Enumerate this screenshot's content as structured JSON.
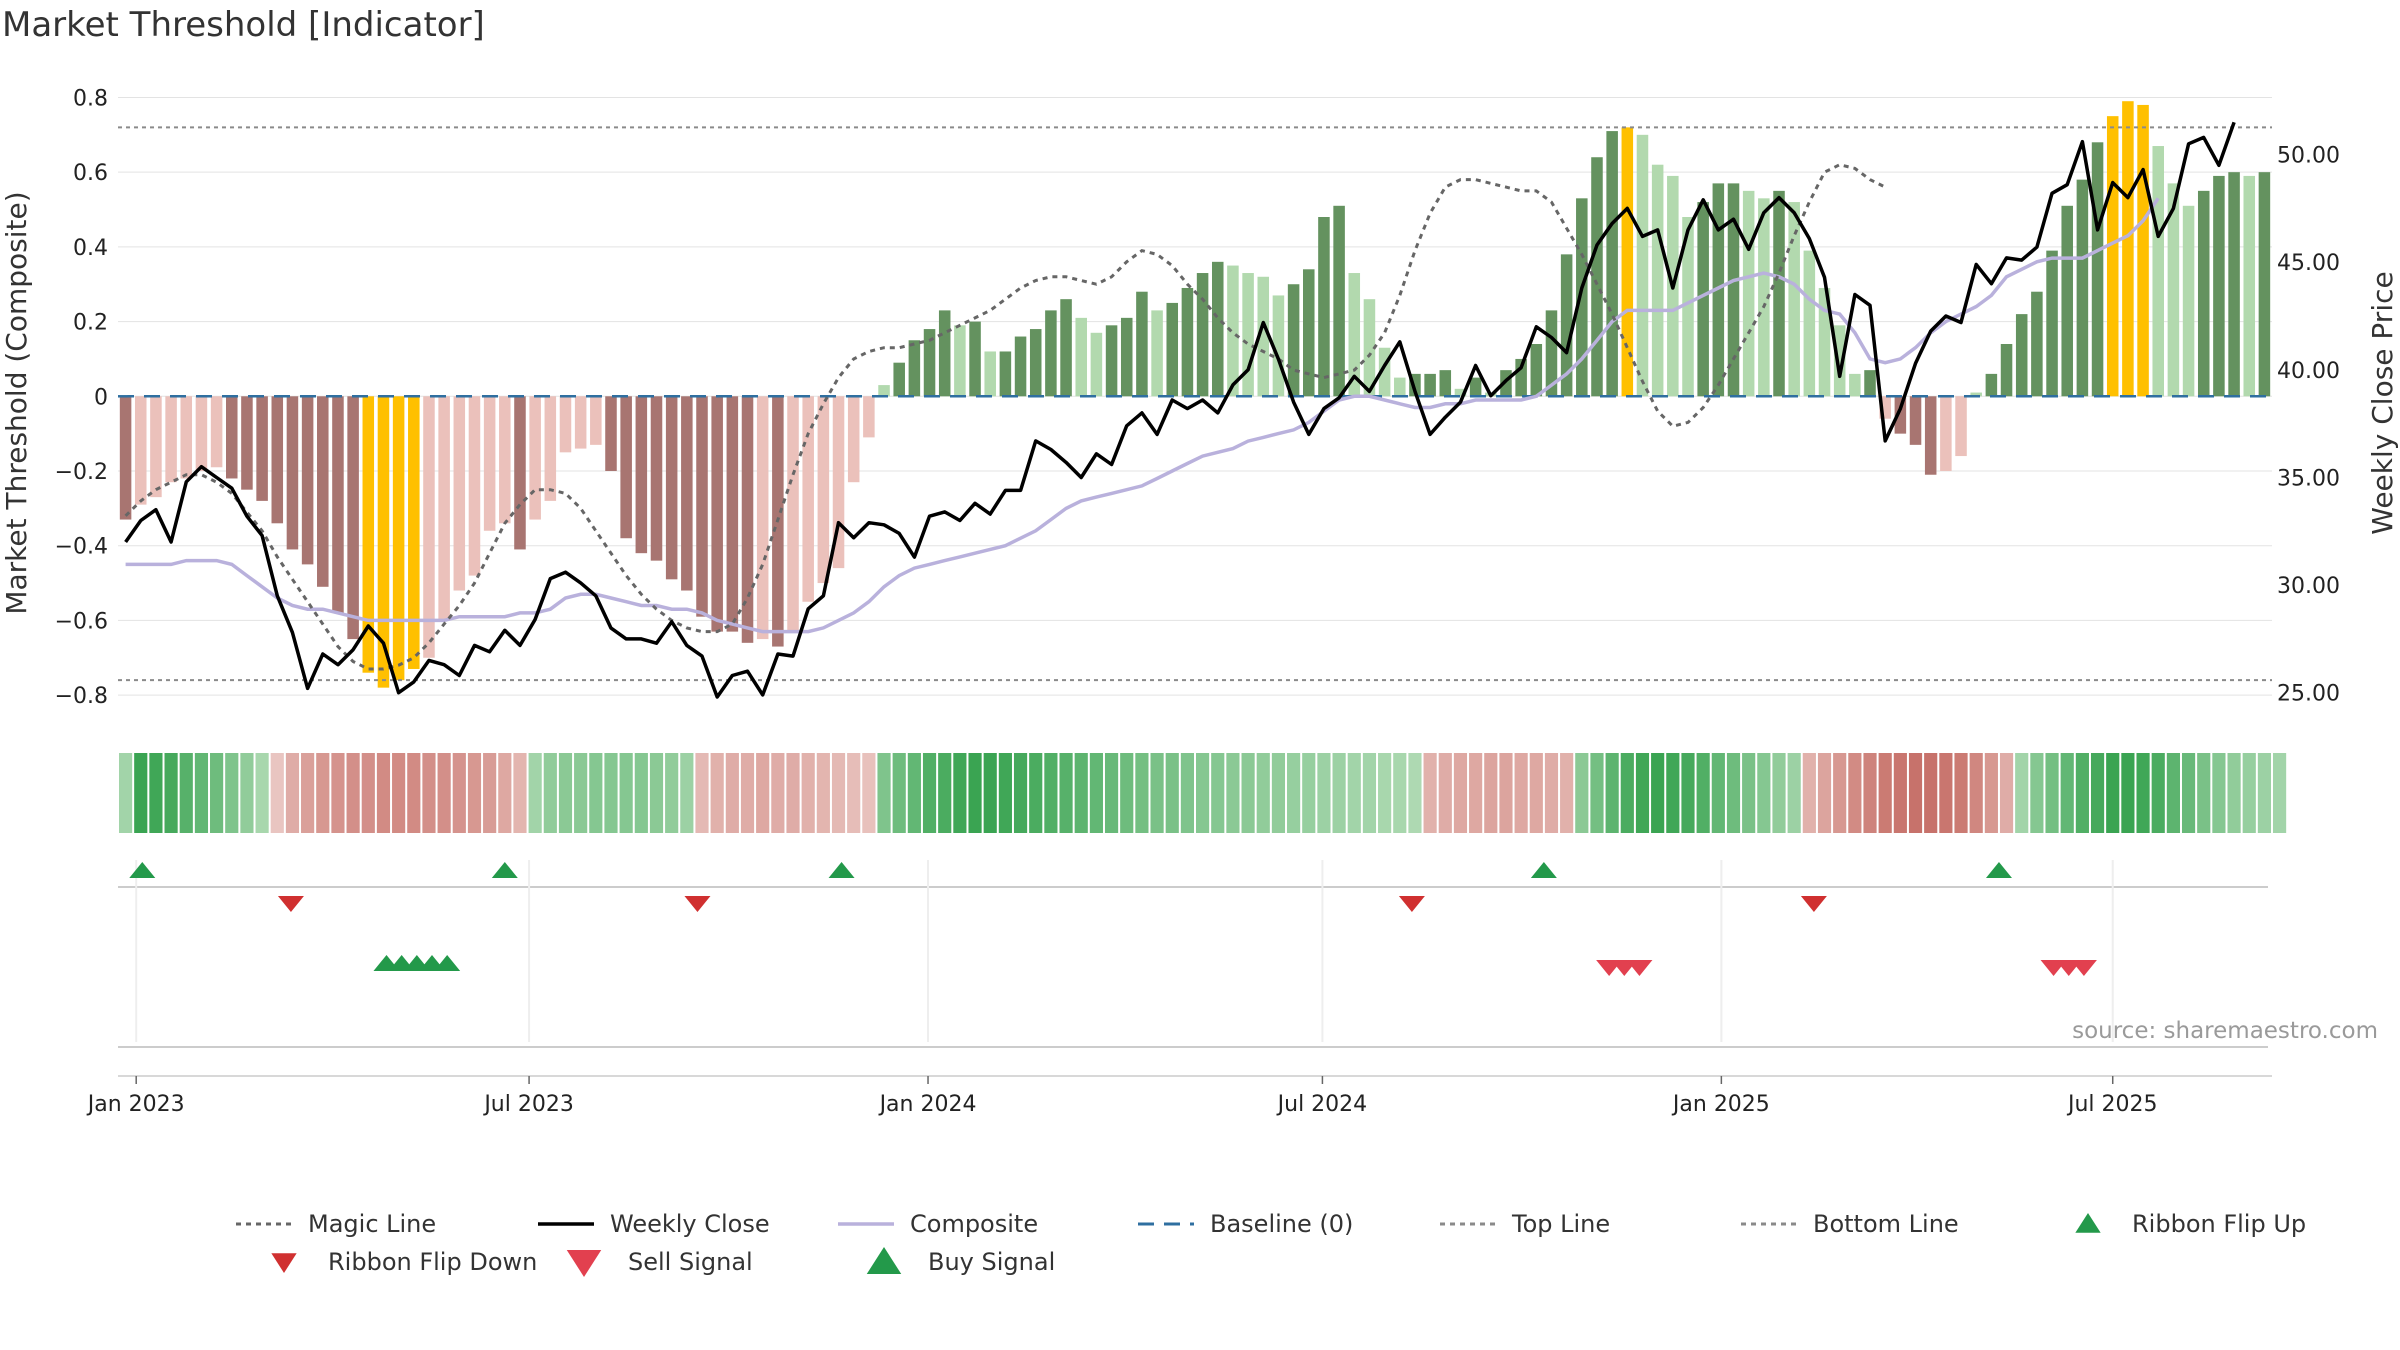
{
  "chart_data": {
    "type": "bar",
    "title": "Market Threshold [Indicator]",
    "ylabel": "Market Threshold (Composite)",
    "y2label": "Weekly Close Price",
    "ylim": [
      -0.88,
      0.82
    ],
    "y2lim": [
      23.5,
      53.0
    ],
    "y_ticks": [
      0.8,
      0.6,
      0.4,
      0.2,
      0,
      -0.2,
      -0.4,
      -0.6,
      -0.8
    ],
    "y_tick_labels": [
      "0.8",
      "0.6",
      "0.4",
      "0.2",
      "0",
      "−0.2",
      "−0.4",
      "−0.6",
      "−0.8"
    ],
    "y2_ticks": [
      50,
      45,
      40,
      35,
      30,
      25
    ],
    "y2_tick_labels": [
      "50.00",
      "45.00",
      "40.00",
      "35.00",
      "30.00",
      "25.00"
    ],
    "x_ticks": [
      {
        "label": "Jan 2023",
        "week": 0.7
      },
      {
        "label": "Jul 2023",
        "week": 26.6
      },
      {
        "label": "Jan 2024",
        "week": 52.9
      },
      {
        "label": "Jul 2024",
        "week": 78.9
      },
      {
        "label": "Jan 2025",
        "week": 105.2
      },
      {
        "label": "Jul 2025",
        "week": 131.0
      }
    ],
    "top_line": 0.72,
    "bottom_line": -0.76,
    "composite": [
      -0.45,
      -0.45,
      -0.45,
      -0.45,
      -0.44,
      -0.44,
      -0.44,
      -0.45,
      -0.48,
      -0.51,
      -0.54,
      -0.56,
      -0.57,
      -0.57,
      -0.58,
      -0.59,
      -0.6,
      -0.6,
      -0.6,
      -0.6,
      -0.6,
      -0.6,
      -0.59,
      -0.59,
      -0.59,
      -0.59,
      -0.58,
      -0.58,
      -0.57,
      -0.54,
      -0.53,
      -0.53,
      -0.54,
      -0.55,
      -0.56,
      -0.56,
      -0.57,
      -0.57,
      -0.58,
      -0.6,
      -0.61,
      -0.62,
      -0.63,
      -0.63,
      -0.63,
      -0.63,
      -0.62,
      -0.6,
      -0.58,
      -0.55,
      -0.51,
      -0.48,
      -0.46,
      -0.45,
      -0.44,
      -0.43,
      -0.42,
      -0.41,
      -0.4,
      -0.38,
      -0.36,
      -0.33,
      -0.3,
      -0.28,
      -0.27,
      -0.26,
      -0.25,
      -0.24,
      -0.22,
      -0.2,
      -0.18,
      -0.16,
      -0.15,
      -0.14,
      -0.12,
      -0.11,
      -0.1,
      -0.09,
      -0.07,
      -0.04,
      -0.01,
      0.0,
      0.0,
      -0.01,
      -0.02,
      -0.03,
      -0.03,
      -0.02,
      -0.02,
      -0.01,
      -0.01,
      -0.01,
      -0.01,
      0.0,
      0.03,
      0.06,
      0.1,
      0.15,
      0.2,
      0.23,
      0.23,
      0.23,
      0.23,
      0.25,
      0.27,
      0.29,
      0.31,
      0.32,
      0.33,
      0.32,
      0.3,
      0.26,
      0.23,
      0.22,
      0.17,
      0.1,
      0.09,
      0.1,
      0.13,
      0.17,
      0.2,
      0.22,
      0.24,
      0.27,
      0.32,
      0.34,
      0.36,
      0.37,
      0.37,
      0.37,
      0.39,
      0.41,
      0.43,
      0.47,
      0.53
    ],
    "magic_line": [
      -0.32,
      -0.28,
      -0.25,
      -0.23,
      -0.21,
      -0.21,
      -0.23,
      -0.26,
      -0.31,
      -0.36,
      -0.43,
      -0.49,
      -0.55,
      -0.61,
      -0.67,
      -0.71,
      -0.73,
      -0.73,
      -0.72,
      -0.7,
      -0.66,
      -0.61,
      -0.56,
      -0.5,
      -0.42,
      -0.34,
      -0.29,
      -0.25,
      -0.25,
      -0.26,
      -0.3,
      -0.36,
      -0.42,
      -0.48,
      -0.53,
      -0.57,
      -0.6,
      -0.62,
      -0.63,
      -0.63,
      -0.61,
      -0.54,
      -0.45,
      -0.33,
      -0.21,
      -0.1,
      -0.02,
      0.05,
      0.1,
      0.12,
      0.13,
      0.13,
      0.14,
      0.15,
      0.17,
      0.19,
      0.21,
      0.23,
      0.26,
      0.29,
      0.31,
      0.32,
      0.32,
      0.31,
      0.3,
      0.32,
      0.36,
      0.39,
      0.38,
      0.35,
      0.3,
      0.26,
      0.21,
      0.17,
      0.14,
      0.12,
      0.1,
      0.07,
      0.06,
      0.05,
      0.06,
      0.07,
      0.11,
      0.17,
      0.27,
      0.39,
      0.49,
      0.56,
      0.58,
      0.58,
      0.57,
      0.56,
      0.55,
      0.55,
      0.52,
      0.45,
      0.38,
      0.3,
      0.22,
      0.13,
      0.04,
      -0.04,
      -0.08,
      -0.07,
      -0.03,
      0.03,
      0.1,
      0.17,
      0.24,
      0.33,
      0.43,
      0.52,
      0.6,
      0.62,
      0.61,
      0.58,
      0.56
    ],
    "weekly_close": [
      32.0,
      33.0,
      33.5,
      32.0,
      34.8,
      35.5,
      35.0,
      34.5,
      33.2,
      32.3,
      29.5,
      27.8,
      25.2,
      26.8,
      26.3,
      27.0,
      28.1,
      27.3,
      25.0,
      25.5,
      26.5,
      26.3,
      25.8,
      27.2,
      26.9,
      27.9,
      27.2,
      28.4,
      30.3,
      30.6,
      30.1,
      29.5,
      28.0,
      27.5,
      27.5,
      27.3,
      28.3,
      27.2,
      26.7,
      24.8,
      25.8,
      26.0,
      24.9,
      26.8,
      26.7,
      28.9,
      29.5,
      32.9,
      32.2,
      32.9,
      32.8,
      32.4,
      31.3,
      33.2,
      33.4,
      33.0,
      33.8,
      33.3,
      34.4,
      34.4,
      36.7,
      36.3,
      35.7,
      35.0,
      36.1,
      35.6,
      37.4,
      38.0,
      37.0,
      38.6,
      38.2,
      38.6,
      38.0,
      39.3,
      40.0,
      42.2,
      40.5,
      38.5,
      37.0,
      38.2,
      38.7,
      39.7,
      39.0,
      40.2,
      41.3,
      39.0,
      37.0,
      37.8,
      38.5,
      40.2,
      38.8,
      39.5,
      40.1,
      42.0,
      41.5,
      40.8,
      43.8,
      45.8,
      46.8,
      47.5,
      46.2,
      46.5,
      43.8,
      46.5,
      47.9,
      46.5,
      47.0,
      45.6,
      47.3,
      48.0,
      47.3,
      46.1,
      44.3,
      39.7,
      43.5,
      43.0,
      36.7,
      38.2,
      40.3,
      41.8,
      42.5,
      42.2,
      44.9,
      44.0,
      45.2,
      45.1,
      45.7,
      48.2,
      48.6,
      50.6,
      46.5,
      48.7,
      48.0,
      49.3,
      46.2,
      47.5,
      50.5,
      50.8,
      49.5,
      51.5
    ],
    "histogram": [
      -0.33,
      -0.29,
      -0.27,
      -0.23,
      -0.22,
      -0.2,
      -0.19,
      -0.22,
      -0.25,
      -0.28,
      -0.34,
      -0.41,
      -0.45,
      -0.51,
      -0.58,
      -0.65,
      -0.74,
      -0.78,
      -0.76,
      -0.73,
      -0.7,
      -0.6,
      -0.52,
      -0.48,
      -0.36,
      -0.34,
      -0.41,
      -0.33,
      -0.28,
      -0.15,
      -0.14,
      -0.13,
      -0.2,
      -0.38,
      -0.42,
      -0.44,
      -0.49,
      -0.52,
      -0.59,
      -0.63,
      -0.63,
      -0.66,
      -0.65,
      -0.67,
      -0.63,
      -0.55,
      -0.5,
      -0.46,
      -0.23,
      -0.11,
      0.03,
      0.09,
      0.15,
      0.18,
      0.23,
      0.19,
      0.2,
      0.12,
      0.12,
      0.16,
      0.18,
      0.23,
      0.26,
      0.21,
      0.17,
      0.19,
      0.21,
      0.28,
      0.23,
      0.25,
      0.29,
      0.33,
      0.36,
      0.35,
      0.33,
      0.32,
      0.27,
      0.3,
      0.34,
      0.48,
      0.51,
      0.33,
      0.26,
      0.13,
      0.05,
      0.06,
      0.06,
      0.07,
      0.02,
      0.05,
      0.01,
      0.07,
      0.1,
      0.14,
      0.23,
      0.38,
      0.53,
      0.64,
      0.71,
      0.72,
      0.7,
      0.62,
      0.59,
      0.48,
      0.52,
      0.57,
      0.57,
      0.55,
      0.53,
      0.55,
      0.52,
      0.39,
      0.29,
      0.19,
      0.06,
      0.07,
      -0.06,
      -0.1,
      -0.13,
      -0.21,
      -0.2,
      -0.16,
      0.01,
      0.06,
      0.14,
      0.22,
      0.28,
      0.39,
      0.51,
      0.58,
      0.68,
      0.75,
      0.79,
      0.78,
      0.67,
      0.57,
      0.51,
      0.55,
      0.59,
      0.6,
      0.59,
      0.6
    ],
    "ribbon": [
      0.9,
      2.7,
      2.6,
      2.5,
      2.2,
      2.0,
      1.8,
      1.5,
      1.2,
      0.8,
      -0.5,
      -1.1,
      -1.4,
      -1.6,
      -1.7,
      -1.8,
      -1.8,
      -1.9,
      -1.9,
      -1.9,
      -1.8,
      -1.8,
      -1.7,
      -1.6,
      -1.5,
      -1.2,
      -0.9,
      0.9,
      1.2,
      1.3,
      1.3,
      1.4,
      1.4,
      1.4,
      1.4,
      1.3,
      1.2,
      1.0,
      -0.8,
      -1.0,
      -1.1,
      -1.1,
      -1.2,
      -1.1,
      -1.1,
      -1.0,
      -0.9,
      -0.8,
      -0.7,
      -0.6,
      1.5,
      1.8,
      2.0,
      2.3,
      2.4,
      2.6,
      2.7,
      2.7,
      2.6,
      2.5,
      2.4,
      2.3,
      2.2,
      2.1,
      2.0,
      1.9,
      1.8,
      1.7,
      1.6,
      1.6,
      1.5,
      1.4,
      1.4,
      1.3,
      1.3,
      1.2,
      1.2,
      1.1,
      1.1,
      1.0,
      1.0,
      0.9,
      0.9,
      0.8,
      0.8,
      0.7,
      -1.0,
      -1.1,
      -1.2,
      -1.2,
      -1.3,
      -1.3,
      -1.2,
      -1.2,
      -1.1,
      -1.0,
      1.3,
      1.7,
      2.1,
      2.4,
      2.6,
      2.7,
      2.6,
      2.5,
      2.3,
      2.0,
      1.8,
      1.6,
      1.4,
      1.2,
      1.0,
      -1.0,
      -1.3,
      -1.6,
      -1.9,
      -2.1,
      -2.3,
      -2.4,
      -2.5,
      -2.5,
      -2.4,
      -2.3,
      -2.0,
      -1.6,
      -1.1,
      0.9,
      1.4,
      1.7,
      2.0,
      2.3,
      2.5,
      2.7,
      2.7,
      2.6,
      2.4,
      2.1,
      1.9,
      1.6,
      1.4,
      1.2,
      1.1,
      1.0,
      0.9
    ],
    "ribbon_flip_up": [
      1.1,
      25.0,
      47.2,
      93.5,
      123.5
    ],
    "ribbon_flip_down": [
      10.9,
      37.7,
      84.8,
      111.3
    ],
    "buy_signal": [
      17.2,
      18.2,
      19.2,
      20.2,
      21.2
    ],
    "sell_signal": [
      97.8,
      98.8,
      99.8,
      127.1,
      128.1,
      129.1
    ],
    "legend": {
      "location": "bottom",
      "items": [
        {
          "label": "Magic Line",
          "type": "dotted-line",
          "color": "#666666"
        },
        {
          "label": "Weekly Close",
          "type": "line",
          "color": "#000000"
        },
        {
          "label": "Composite",
          "type": "line",
          "color": "#b9b1dc"
        },
        {
          "label": "Baseline (0)",
          "type": "dashed-line",
          "color": "#2f6fa0"
        },
        {
          "label": "Top Line",
          "type": "dotted-line",
          "color": "#8a8a8a"
        },
        {
          "label": "Bottom Line",
          "type": "dotted-line",
          "color": "#8a8a8a"
        },
        {
          "label": "Ribbon Flip Up",
          "type": "triangle-up",
          "color": "#23994a"
        },
        {
          "label": "Ribbon Flip Down",
          "type": "triangle-down",
          "color": "#d03030"
        },
        {
          "label": "Sell Signal",
          "type": "triangle-down",
          "color": "#e2404f"
        },
        {
          "label": "Buy Signal",
          "type": "triangle-up",
          "color": "#23994a"
        }
      ]
    },
    "colors": {
      "pos_strong": "#64925f",
      "pos_weak": "#b2d9ae",
      "neg_strong": "#a87571",
      "neg_weak": "#ebc1bb",
      "extreme": "#ffc000",
      "grid": "#e3e3e3"
    },
    "source": "source: sharemaestro.com"
  }
}
